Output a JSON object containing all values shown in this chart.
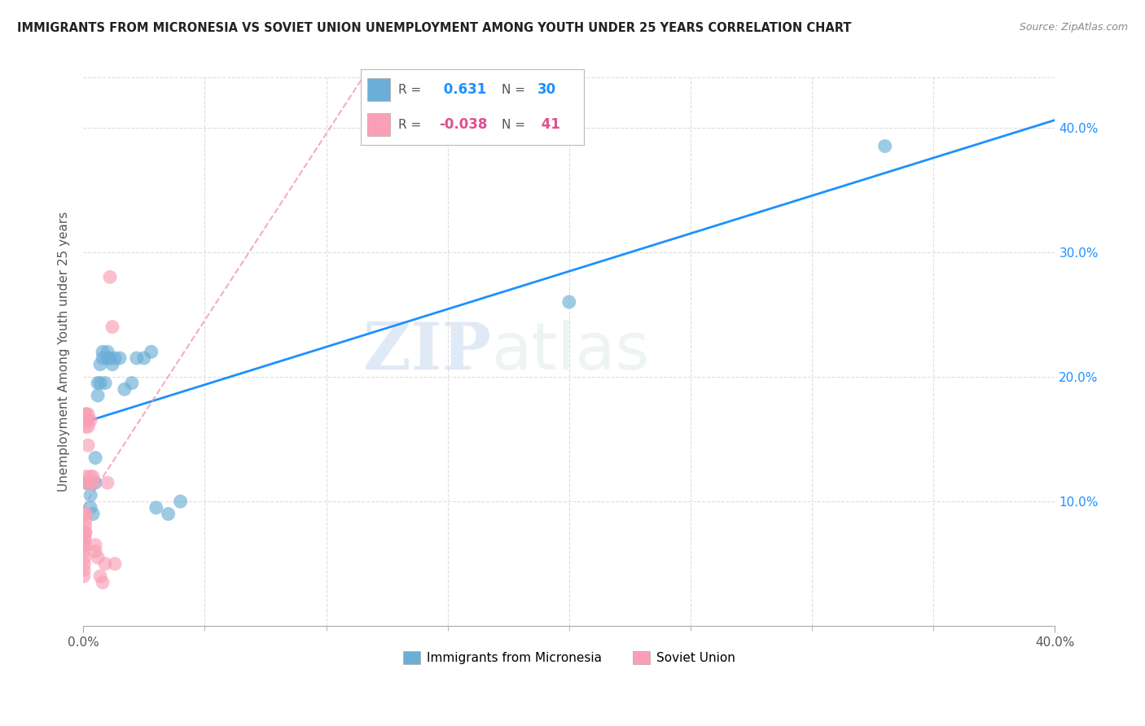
{
  "title": "IMMIGRANTS FROM MICRONESIA VS SOVIET UNION UNEMPLOYMENT AMONG YOUTH UNDER 25 YEARS CORRELATION CHART",
  "source": "Source: ZipAtlas.com",
  "xlabel_label": "Immigrants from Micronesia",
  "ylabel_label": "Unemployment Among Youth under 25 years",
  "xlim": [
    0.0,
    0.4
  ],
  "ylim": [
    0.0,
    0.44
  ],
  "x_minor_ticks": [
    0.05,
    0.1,
    0.15,
    0.2,
    0.25,
    0.3,
    0.35
  ],
  "x_label_ticks": [
    0.0,
    0.4
  ],
  "yticks": [
    0.1,
    0.2,
    0.3,
    0.4
  ],
  "micronesia_color": "#6baed6",
  "soviet_color": "#fa9fb5",
  "line_blue_color": "#1e90ff",
  "line_pink_color": "#f48fb1",
  "micronesia_R": 0.631,
  "micronesia_N": 30,
  "soviet_R": -0.038,
  "soviet_N": 41,
  "micronesia_x": [
    0.001,
    0.002,
    0.003,
    0.003,
    0.004,
    0.005,
    0.005,
    0.006,
    0.006,
    0.007,
    0.007,
    0.008,
    0.008,
    0.009,
    0.01,
    0.01,
    0.011,
    0.012,
    0.013,
    0.015,
    0.017,
    0.02,
    0.022,
    0.025,
    0.028,
    0.03,
    0.035,
    0.04,
    0.2,
    0.33
  ],
  "micronesia_y": [
    0.115,
    0.115,
    0.105,
    0.095,
    0.09,
    0.115,
    0.135,
    0.185,
    0.195,
    0.195,
    0.21,
    0.215,
    0.22,
    0.195,
    0.215,
    0.22,
    0.215,
    0.21,
    0.215,
    0.215,
    0.19,
    0.195,
    0.215,
    0.215,
    0.22,
    0.095,
    0.09,
    0.1,
    0.26,
    0.385
  ],
  "soviet_x": [
    0.0002,
    0.0003,
    0.0004,
    0.0005,
    0.0006,
    0.0007,
    0.0008,
    0.001,
    0.001,
    0.001,
    0.001,
    0.001,
    0.001,
    0.001,
    0.001,
    0.002,
    0.002,
    0.002,
    0.002,
    0.003,
    0.003,
    0.003,
    0.004,
    0.004,
    0.005,
    0.005,
    0.006,
    0.007,
    0.008,
    0.009,
    0.01,
    0.011,
    0.012,
    0.013,
    0.001,
    0.001,
    0.001,
    0.0005,
    0.0004,
    0.0003,
    0.0002
  ],
  "soviet_y": [
    0.06,
    0.065,
    0.065,
    0.07,
    0.07,
    0.075,
    0.08,
    0.085,
    0.09,
    0.115,
    0.115,
    0.12,
    0.16,
    0.165,
    0.17,
    0.145,
    0.16,
    0.165,
    0.17,
    0.115,
    0.12,
    0.165,
    0.115,
    0.12,
    0.06,
    0.065,
    0.055,
    0.04,
    0.035,
    0.05,
    0.115,
    0.28,
    0.24,
    0.05,
    0.09,
    0.075,
    0.17,
    0.055,
    0.05,
    0.045,
    0.04
  ],
  "watermark_zip": "ZIP",
  "watermark_atlas": "atlas",
  "background_color": "#ffffff",
  "grid_color": "#dddddd"
}
